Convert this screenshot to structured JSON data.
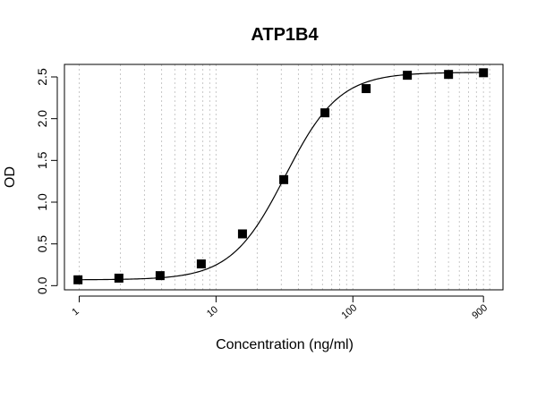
{
  "chart_data": {
    "type": "scatter",
    "title": "ATP1B4",
    "xlabel": "Concentration (ng/ml)",
    "ylabel": "OD",
    "x_scale": "log",
    "xlim": [
      0.78,
      1250
    ],
    "ylim": [
      -0.05,
      2.65
    ],
    "x_ticks": [
      1,
      10,
      100,
      900
    ],
    "x_tick_labels": [
      "1",
      "10",
      "100",
      "900"
    ],
    "y_ticks": [
      0.0,
      0.5,
      1.0,
      1.5,
      2.0,
      2.5
    ],
    "y_tick_labels": [
      "0.0",
      "0.5",
      "1.0",
      "1.5",
      "2.0",
      "2.5"
    ],
    "grid": "vertical dotted at log minor ticks",
    "marker": "square",
    "points": {
      "x": [
        0.98,
        1.95,
        3.9,
        7.8,
        15.6,
        31.25,
        62.5,
        125,
        250,
        500,
        900
      ],
      "y": [
        0.07,
        0.09,
        0.12,
        0.26,
        0.62,
        1.27,
        2.07,
        2.36,
        2.52,
        2.53,
        2.55
      ]
    },
    "fit_curve": {
      "model": "4PL",
      "bottom": 0.07,
      "top": 2.555,
      "ec50": 32,
      "hill": 2.2
    }
  }
}
